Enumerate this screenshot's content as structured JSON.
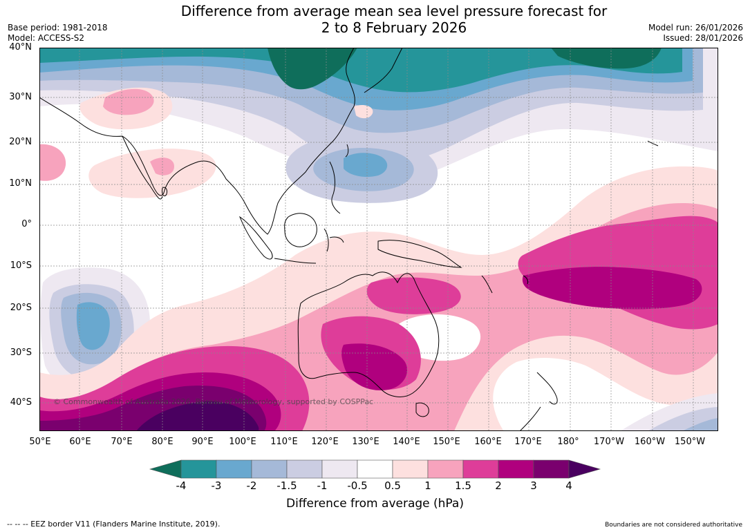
{
  "title": "Difference from average mean sea level pressure forecast for",
  "subtitle": "2 to 8 February 2026",
  "base_period": "Base period: 1981-2018",
  "model": "Model: ACCESS-S2",
  "model_run": "Model run: 26/01/2026",
  "issued": "Issued: 28/01/2026",
  "lat_labels": [
    "40°N",
    "30°N",
    "20°N",
    "10°N",
    "0°",
    "10°S",
    "20°S",
    "30°S",
    "40°S"
  ],
  "lon_labels": [
    "50°E",
    "60°E",
    "70°E",
    "80°E",
    "90°E",
    "100°E",
    "110°E",
    "120°E",
    "130°E",
    "140°E",
    "150°E",
    "160°E",
    "170°E",
    "180°",
    "170°W",
    "160°W",
    "150°W"
  ],
  "colorbar": {
    "title": "Difference from average (hPa)",
    "tick_labels": [
      "-4",
      "-3",
      "-2",
      "-1.5",
      "-1",
      "-0.5",
      "0.5",
      "1",
      "1.5",
      "2",
      "3",
      "4"
    ],
    "colors": [
      "#0f6e5b",
      "#25959a",
      "#69a8cf",
      "#a5b9d8",
      "#cbcde2",
      "#eee8f1",
      "#ffffff",
      "#fde0df",
      "#f7a3bd",
      "#de3d99",
      "#b0007e",
      "#7a006e",
      "#4a0060"
    ]
  },
  "copyright": "© Commonwealth of Australia 2026, Bureau of Meteorology, supported by COSPPac",
  "footer_left": "--  --  -- EEZ border V11 (Flanders Marine Institute, 2019).",
  "footer_right": "Boundaries are not considered authoritative"
}
